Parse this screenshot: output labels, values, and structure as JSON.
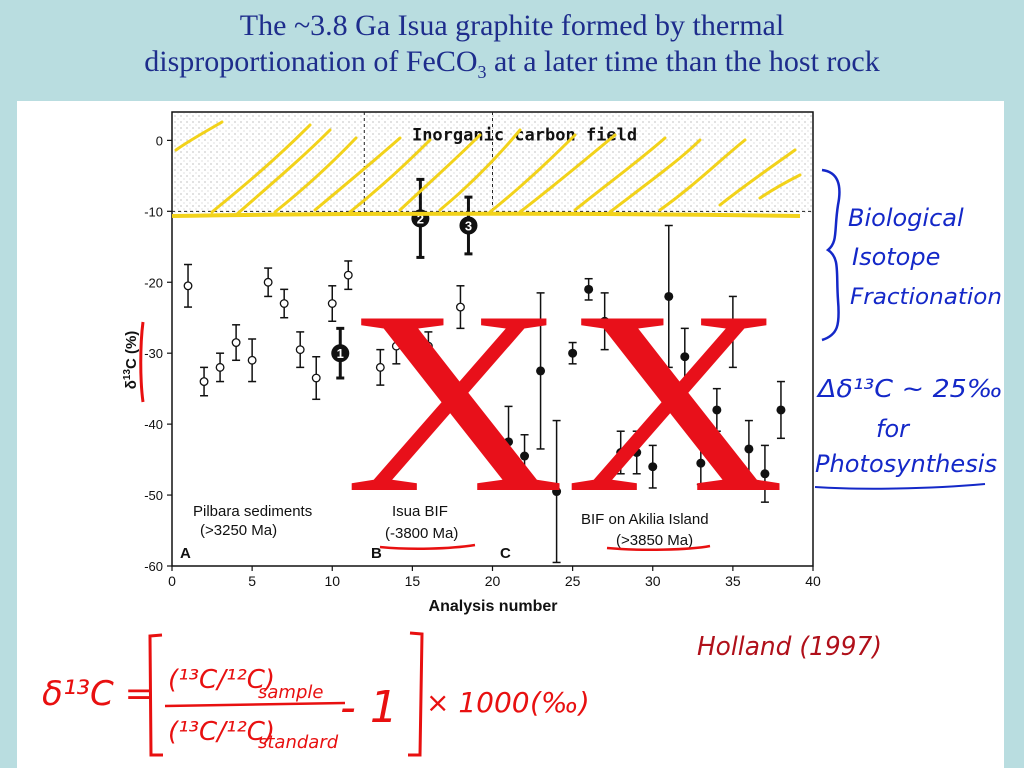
{
  "slide": {
    "title_part1": "The ~3.8 Ga Isua graphite formed by thermal",
    "title_part2": "disproportionation of FeCO",
    "title_sub": "3",
    "title_part3": " at a later time than the host rock"
  },
  "colors": {
    "background": "#b9dde0",
    "title": "#1e2d8c",
    "yellow_annotation": "#f2d21a",
    "red_annotation": "#e81010",
    "blue_annotation": "#1428c8"
  },
  "chart_data": {
    "type": "scatter",
    "xlabel": "Analysis number",
    "ylabel": "δ13C (%)",
    "xlim": [
      0,
      40
    ],
    "ylim": [
      -60,
      4
    ],
    "x_ticks": [
      0,
      5,
      10,
      15,
      20,
      25,
      30,
      35,
      40
    ],
    "y_ticks": [
      0,
      -10,
      -20,
      -30,
      -40,
      -50,
      -60
    ],
    "field_label": "Inorganic carbon field",
    "panel_letters": [
      "A",
      "B",
      "C"
    ],
    "dividers": [
      12,
      20
    ],
    "groups": [
      {
        "label": "Pilbara sediments",
        "age": "(>3250 Ma)"
      },
      {
        "label": "Isua BIF",
        "age": "(-3800 Ma)"
      },
      {
        "label": "BIF on Akilia Island",
        "age": "(>3850 Ma)"
      }
    ],
    "series": [
      {
        "name": "Pilbara sediments",
        "marker": "open",
        "points": [
          {
            "x": 1,
            "y": -20.5,
            "err": 3
          },
          {
            "x": 2,
            "y": -34,
            "err": 2
          },
          {
            "x": 3,
            "y": -32,
            "err": 2
          },
          {
            "x": 4,
            "y": -28.5,
            "err": 2.5
          },
          {
            "x": 5,
            "y": -31,
            "err": 3
          },
          {
            "x": 6,
            "y": -20,
            "err": 2
          },
          {
            "x": 7,
            "y": -23,
            "err": 2
          },
          {
            "x": 8,
            "y": -29.5,
            "err": 2.5
          },
          {
            "x": 9,
            "y": -33.5,
            "err": 3
          },
          {
            "x": 10,
            "y": -23,
            "err": 2.5
          },
          {
            "x": 11,
            "y": -19,
            "err": 2
          }
        ]
      },
      {
        "name": "Isua BIF",
        "marker": "open",
        "points": [
          {
            "x": 13,
            "y": -32,
            "err": 2.5
          },
          {
            "x": 14,
            "y": -29,
            "err": 2.5
          },
          {
            "x": 16,
            "y": -29,
            "err": 2
          },
          {
            "x": 18,
            "y": -23.5,
            "err": 3
          }
        ]
      },
      {
        "name": "BIF on Akilia Island",
        "marker": "filled",
        "points": [
          {
            "x": 21,
            "y": -42.5,
            "err": 5
          },
          {
            "x": 22,
            "y": -44.5,
            "err": 3
          },
          {
            "x": 23,
            "y": -32.5,
            "err": 11
          },
          {
            "x": 24,
            "y": -49.5,
            "err": 10
          },
          {
            "x": 25,
            "y": -30,
            "err": 1.5
          },
          {
            "x": 26,
            "y": -21,
            "err": 1.5
          },
          {
            "x": 27,
            "y": -25.5,
            "err": 4
          },
          {
            "x": 28,
            "y": -44,
            "err": 3
          },
          {
            "x": 29,
            "y": -44,
            "err": 3
          },
          {
            "x": 30,
            "y": -46,
            "err": 3
          },
          {
            "x": 31,
            "y": -22,
            "err": 10
          },
          {
            "x": 32,
            "y": -30.5,
            "err": 4
          },
          {
            "x": 33,
            "y": -45.5,
            "err": 3
          },
          {
            "x": 34,
            "y": -38,
            "err": 3
          },
          {
            "x": 35,
            "y": -27,
            "err": 5
          },
          {
            "x": 36,
            "y": -43.5,
            "err": 4
          },
          {
            "x": 37,
            "y": -47,
            "err": 4
          },
          {
            "x": 38,
            "y": -38,
            "err": 4
          }
        ]
      },
      {
        "name": "Numbered samples",
        "marker": "numbered",
        "points": [
          {
            "x": 10.5,
            "y": -30,
            "err": 3.5,
            "label": "1"
          },
          {
            "x": 15.5,
            "y": -11,
            "err": 5.5,
            "label": "2"
          },
          {
            "x": 18.5,
            "y": -12,
            "err": 4,
            "label": "3"
          }
        ]
      }
    ]
  },
  "annotations": {
    "crossout": "XX",
    "biological": [
      "Biological",
      "Isotope",
      "Fractionation"
    ],
    "delta_note": "Δδ¹³C ~ 25‰",
    "for_text": "for",
    "photosynthesis": "Photosynthesis",
    "citation": "Holland (1997)",
    "formula_lhs": "δ¹³C =",
    "formula_num": "(¹³C/¹²C)",
    "formula_num_sub": "sample",
    "formula_den": "(¹³C/¹²C)",
    "formula_den_sub": "standard",
    "formula_minus_one": "- 1",
    "formula_mult": "× 1000",
    "formula_unit": "(‰)"
  }
}
